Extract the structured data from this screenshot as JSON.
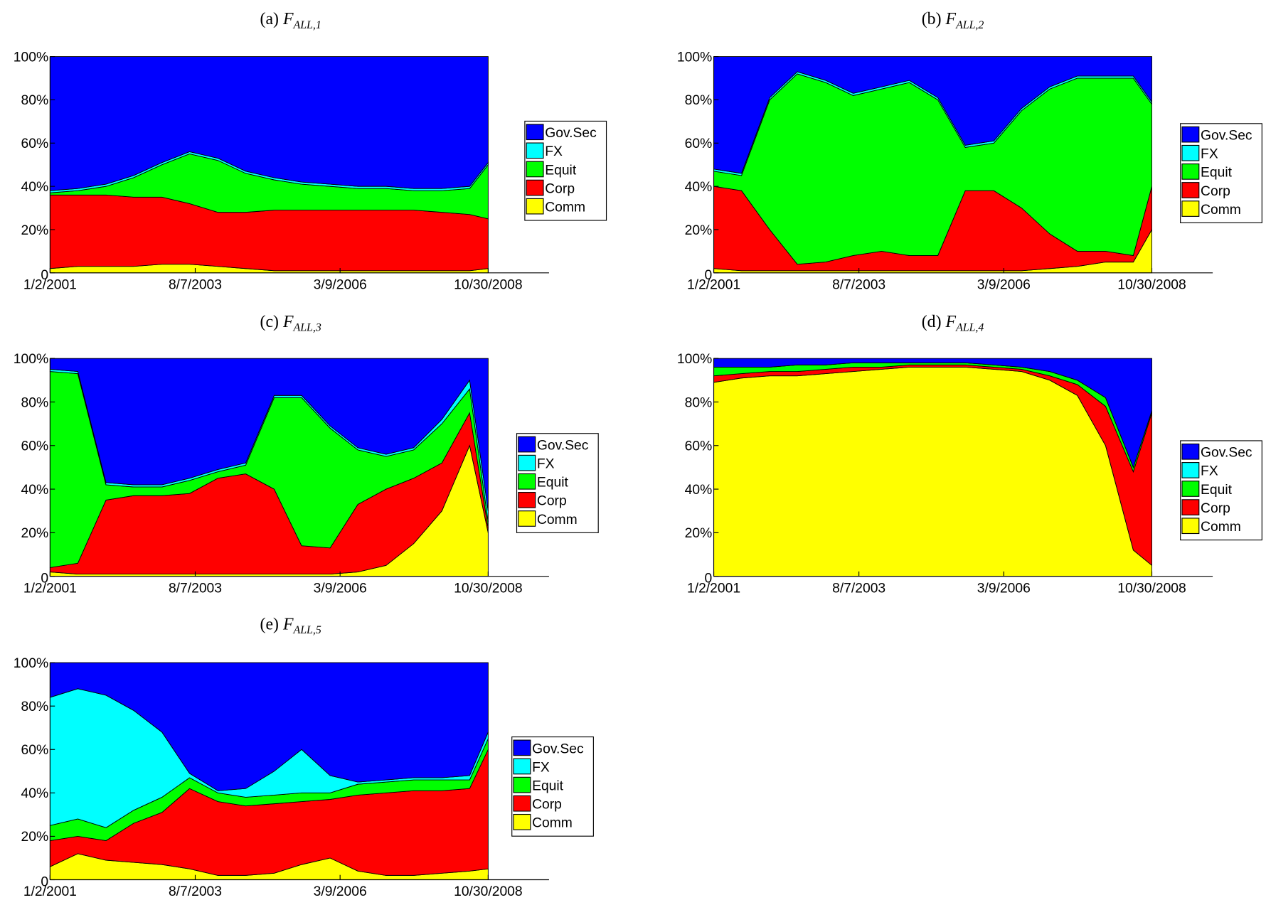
{
  "chart_data": [
    {
      "type": "stacked_area",
      "label": "(a)",
      "title": "F",
      "subscript": "ALL,1",
      "x": [
        "1/2/2001",
        "7/2/2001",
        "1/2/2002",
        "7/1/2002",
        "1/2/2003",
        "7/1/2003",
        "1/2/2004",
        "7/1/2004",
        "1/3/2005",
        "7/1/2005",
        "1/3/2006",
        "7/3/2006",
        "1/3/2007",
        "7/2/2007",
        "1/2/2008",
        "7/1/2008",
        "10/30/2008"
      ],
      "xlim": [
        "1/2/2001",
        "12/1/2009"
      ],
      "xticks": [
        "1/2/2001",
        "8/7/2003",
        "3/9/2006",
        "10/30/2008"
      ],
      "ylim": [
        0,
        100
      ],
      "yticks": [
        0,
        {
          "value": 20,
          "label": "20%"
        },
        {
          "value": 40,
          "label": "40%"
        },
        {
          "value": 60,
          "label": "60%"
        },
        {
          "value": 80,
          "label": "80%"
        },
        {
          "value": 100,
          "label": "100%"
        }
      ],
      "series": [
        {
          "name": "Comm",
          "color": "#ffff00",
          "values": [
            2,
            3,
            3,
            3,
            4,
            4,
            3,
            2,
            1,
            1,
            1,
            1,
            1,
            1,
            1,
            1,
            2
          ]
        },
        {
          "name": "Corp",
          "color": "#ff0000",
          "values": [
            34,
            33,
            33,
            32,
            31,
            28,
            25,
            26,
            28,
            28,
            28,
            28,
            28,
            28,
            27,
            26,
            23
          ]
        },
        {
          "name": "Equit",
          "color": "#00ff00",
          "values": [
            1,
            2,
            4,
            9,
            15,
            23,
            24,
            18,
            14,
            12,
            11,
            10,
            10,
            9,
            10,
            12,
            25
          ]
        },
        {
          "name": "FX",
          "color": "#00ffff",
          "values": [
            1,
            1,
            1,
            1,
            1,
            1,
            1,
            1,
            1,
            1,
            1,
            1,
            1,
            1,
            1,
            1,
            1
          ]
        },
        {
          "name": "Gov.Sec",
          "color": "#0000ff",
          "values": [
            62,
            61,
            59,
            55,
            49,
            44,
            47,
            53,
            56,
            58,
            59,
            60,
            60,
            61,
            61,
            60,
            49
          ]
        }
      ]
    },
    {
      "type": "stacked_area",
      "label": "(b)",
      "title": "F",
      "subscript": "ALL,2",
      "x": [
        "1/2/2001",
        "7/2/2001",
        "1/2/2002",
        "7/1/2002",
        "1/2/2003",
        "7/1/2003",
        "1/2/2004",
        "7/1/2004",
        "1/3/2005",
        "7/1/2005",
        "1/3/2006",
        "7/3/2006",
        "1/3/2007",
        "7/2/2007",
        "1/2/2008",
        "7/1/2008",
        "10/30/2008"
      ],
      "xlim": [
        "1/2/2001",
        "12/1/2009"
      ],
      "xticks": [
        "1/2/2001",
        "8/7/2003",
        "3/9/2006",
        "10/30/2008"
      ],
      "ylim": [
        0,
        100
      ],
      "yticks": [
        0,
        {
          "value": 20,
          "label": "20%"
        },
        {
          "value": 40,
          "label": "40%"
        },
        {
          "value": 60,
          "label": "60%"
        },
        {
          "value": 80,
          "label": "80%"
        },
        {
          "value": 100,
          "label": "100%"
        }
      ],
      "series": [
        {
          "name": "Comm",
          "color": "#ffff00",
          "values": [
            2,
            1,
            1,
            1,
            1,
            1,
            1,
            1,
            1,
            1,
            1,
            1,
            2,
            3,
            5,
            5,
            20
          ]
        },
        {
          "name": "Corp",
          "color": "#ff0000",
          "values": [
            38,
            37,
            19,
            3,
            4,
            7,
            9,
            7,
            7,
            37,
            37,
            29,
            16,
            7,
            5,
            3,
            20
          ]
        },
        {
          "name": "Equit",
          "color": "#00ff00",
          "values": [
            7,
            7,
            60,
            88,
            83,
            74,
            75,
            80,
            72,
            20,
            22,
            45,
            67,
            80,
            80,
            82,
            38
          ]
        },
        {
          "name": "FX",
          "color": "#00ffff",
          "values": [
            1,
            1,
            1,
            1,
            1,
            1,
            1,
            1,
            1,
            1,
            1,
            1,
            1,
            1,
            1,
            1,
            1
          ]
        },
        {
          "name": "Gov.Sec",
          "color": "#0000ff",
          "values": [
            52,
            54,
            19,
            7,
            11,
            17,
            14,
            11,
            19,
            41,
            39,
            24,
            14,
            9,
            9,
            9,
            21
          ]
        }
      ]
    },
    {
      "type": "stacked_area",
      "label": "(c)",
      "title": "F",
      "subscript": "ALL,3",
      "x": [
        "1/2/2001",
        "7/2/2001",
        "1/2/2002",
        "7/1/2002",
        "1/2/2003",
        "7/1/2003",
        "1/2/2004",
        "7/1/2004",
        "1/3/2005",
        "7/1/2005",
        "1/3/2006",
        "7/3/2006",
        "1/3/2007",
        "7/2/2007",
        "1/2/2008",
        "7/1/2008",
        "10/30/2008"
      ],
      "xlim": [
        "1/2/2001",
        "12/1/2009"
      ],
      "xticks": [
        "1/2/2001",
        "8/7/2003",
        "3/9/2006",
        "10/30/2008"
      ],
      "ylim": [
        0,
        100
      ],
      "yticks": [
        0,
        {
          "value": 20,
          "label": "20%"
        },
        {
          "value": 40,
          "label": "40%"
        },
        {
          "value": 60,
          "label": "60%"
        },
        {
          "value": 80,
          "label": "80%"
        },
        {
          "value": 100,
          "label": "100%"
        }
      ],
      "series": [
        {
          "name": "Comm",
          "color": "#ffff00",
          "values": [
            2,
            1,
            1,
            1,
            1,
            1,
            1,
            1,
            1,
            1,
            1,
            2,
            5,
            15,
            30,
            60,
            20
          ]
        },
        {
          "name": "Corp",
          "color": "#ff0000",
          "values": [
            2,
            5,
            34,
            36,
            36,
            37,
            44,
            46,
            39,
            13,
            12,
            31,
            35,
            30,
            22,
            15,
            2
          ]
        },
        {
          "name": "Equit",
          "color": "#00ff00",
          "values": [
            90,
            87,
            7,
            4,
            4,
            6,
            3,
            4,
            42,
            68,
            55,
            25,
            15,
            13,
            18,
            11,
            3
          ]
        },
        {
          "name": "FX",
          "color": "#00ffff",
          "values": [
            1,
            1,
            1,
            1,
            1,
            1,
            1,
            1,
            1,
            1,
            1,
            1,
            1,
            1,
            2,
            4,
            5
          ]
        },
        {
          "name": "Gov.Sec",
          "color": "#0000ff",
          "values": [
            5,
            6,
            57,
            58,
            58,
            55,
            51,
            48,
            17,
            17,
            31,
            41,
            44,
            41,
            28,
            10,
            70
          ]
        }
      ]
    },
    {
      "type": "stacked_area",
      "label": "(d)",
      "title": "F",
      "subscript": "ALL,4",
      "x": [
        "1/2/2001",
        "7/2/2001",
        "1/2/2002",
        "7/1/2002",
        "1/2/2003",
        "7/1/2003",
        "1/2/2004",
        "7/1/2004",
        "1/3/2005",
        "7/1/2005",
        "1/3/2006",
        "7/3/2006",
        "1/3/2007",
        "7/2/2007",
        "1/2/2008",
        "7/1/2008",
        "10/30/2008"
      ],
      "xlim": [
        "1/2/2001",
        "12/1/2009"
      ],
      "xticks": [
        "1/2/2001",
        "8/7/2003",
        "3/9/2006",
        "10/30/2008"
      ],
      "ylim": [
        0,
        100
      ],
      "yticks": [
        0,
        {
          "value": 20,
          "label": "20%"
        },
        {
          "value": 40,
          "label": "40%"
        },
        {
          "value": 60,
          "label": "60%"
        },
        {
          "value": 80,
          "label": "80%"
        },
        {
          "value": 100,
          "label": "100%"
        }
      ],
      "series": [
        {
          "name": "Comm",
          "color": "#ffff00",
          "values": [
            89,
            91,
            92,
            92,
            93,
            94,
            95,
            96,
            96,
            96,
            95,
            94,
            90,
            83,
            60,
            12,
            5
          ]
        },
        {
          "name": "Corp",
          "color": "#ff0000",
          "values": [
            3,
            2,
            2,
            2,
            2,
            2,
            1,
            1,
            1,
            1,
            1,
            1,
            2,
            5,
            18,
            36,
            70
          ]
        },
        {
          "name": "Equit",
          "color": "#00ff00",
          "values": [
            4,
            3,
            2,
            3,
            2,
            2,
            2,
            1,
            1,
            1,
            1,
            1,
            2,
            2,
            4,
            2,
            1
          ]
        },
        {
          "name": "FX",
          "color": "#00ffff",
          "values": [
            0,
            0,
            0,
            0,
            0,
            0,
            0,
            0,
            0,
            0,
            0,
            0,
            0,
            0,
            0,
            0,
            0
          ]
        },
        {
          "name": "Gov.Sec",
          "color": "#0000ff",
          "values": [
            4,
            4,
            4,
            3,
            3,
            2,
            2,
            2,
            2,
            2,
            3,
            4,
            6,
            10,
            18,
            50,
            24
          ]
        }
      ]
    },
    {
      "type": "stacked_area",
      "label": "(e)",
      "title": "F",
      "subscript": "ALL,5",
      "x": [
        "1/2/2001",
        "7/2/2001",
        "1/2/2002",
        "7/1/2002",
        "1/2/2003",
        "7/1/2003",
        "1/2/2004",
        "7/1/2004",
        "1/3/2005",
        "7/1/2005",
        "1/3/2006",
        "7/3/2006",
        "1/3/2007",
        "7/2/2007",
        "1/2/2008",
        "7/1/2008",
        "10/30/2008"
      ],
      "xlim": [
        "1/2/2001",
        "12/1/2009"
      ],
      "xticks": [
        "1/2/2001",
        "8/7/2003",
        "3/9/2006",
        "10/30/2008"
      ],
      "ylim": [
        0,
        100
      ],
      "yticks": [
        0,
        {
          "value": 20,
          "label": "20%"
        },
        {
          "value": 40,
          "label": "40%"
        },
        {
          "value": 60,
          "label": "60%"
        },
        {
          "value": 80,
          "label": "80%"
        },
        {
          "value": 100,
          "label": "100%"
        }
      ],
      "series": [
        {
          "name": "Comm",
          "color": "#ffff00",
          "values": [
            6,
            12,
            9,
            8,
            7,
            5,
            2,
            2,
            3,
            7,
            10,
            4,
            2,
            2,
            3,
            4,
            5
          ]
        },
        {
          "name": "Corp",
          "color": "#ff0000",
          "values": [
            12,
            8,
            9,
            18,
            24,
            37,
            34,
            32,
            32,
            29,
            27,
            35,
            38,
            39,
            38,
            38,
            55
          ]
        },
        {
          "name": "Equit",
          "color": "#00ff00",
          "values": [
            7,
            8,
            6,
            6,
            7,
            5,
            4,
            4,
            4,
            4,
            3,
            5,
            5,
            5,
            5,
            4,
            5
          ]
        },
        {
          "name": "FX",
          "color": "#00ffff",
          "values": [
            59,
            60,
            61,
            46,
            30,
            2,
            1,
            4,
            11,
            20,
            8,
            1,
            1,
            1,
            1,
            2,
            3
          ]
        },
        {
          "name": "Gov.Sec",
          "color": "#0000ff",
          "values": [
            16,
            12,
            15,
            22,
            32,
            51,
            59,
            58,
            50,
            40,
            52,
            55,
            54,
            53,
            53,
            52,
            32
          ]
        }
      ]
    }
  ]
}
